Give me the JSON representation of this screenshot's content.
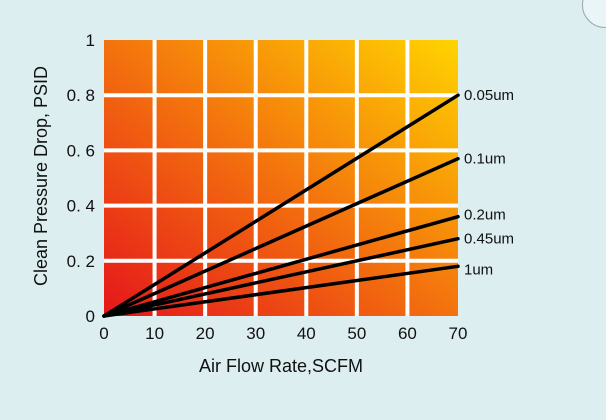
{
  "chart_data": {
    "type": "line",
    "xlabel": "Air Flow Rate,SCFM",
    "ylabel": "Clean Pressure Drop, PSID",
    "xlim": [
      0,
      70
    ],
    "ylim": [
      0,
      1
    ],
    "x_ticks": [
      "0",
      "10",
      "20",
      "30",
      "40",
      "50",
      "60",
      "70"
    ],
    "y_ticks": [
      "0",
      "0. 2",
      "0. 4",
      "0. 6",
      "0. 8",
      "1"
    ],
    "grid": true,
    "background_gradient": [
      "#e5161b",
      "#ffd400"
    ],
    "line_color": "#000000",
    "series": [
      {
        "name": "0.05um",
        "x": [
          0,
          70
        ],
        "y": [
          0,
          0.8
        ]
      },
      {
        "name": "0.1um",
        "x": [
          0,
          70
        ],
        "y": [
          0,
          0.57
        ]
      },
      {
        "name": "0.2um",
        "x": [
          0,
          70
        ],
        "y": [
          0,
          0.36
        ]
      },
      {
        "name": "0.45um",
        "x": [
          0,
          70
        ],
        "y": [
          0,
          0.28
        ]
      },
      {
        "name": "1um",
        "x": [
          0,
          70
        ],
        "y": [
          0,
          0.18
        ]
      }
    ]
  }
}
